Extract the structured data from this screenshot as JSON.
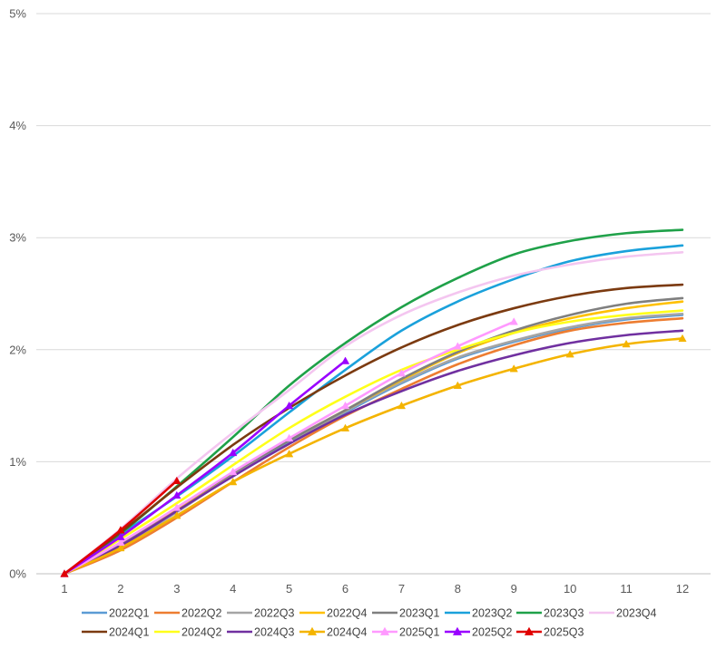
{
  "chart_data": {
    "type": "line",
    "title": "",
    "xlabel": "",
    "ylabel": "",
    "categories": [
      1,
      2,
      3,
      4,
      5,
      6,
      7,
      8,
      9,
      10,
      11,
      12
    ],
    "x_tick_labels": [
      "1",
      "2",
      "3",
      "4",
      "5",
      "6",
      "7",
      "8",
      "9",
      "10",
      "11",
      "12"
    ],
    "ylim": [
      0,
      5
    ],
    "y_ticks": [
      0,
      1,
      2,
      3,
      4,
      5
    ],
    "y_tick_labels": [
      "0%",
      "1%",
      "2%",
      "3%",
      "4%",
      "5%"
    ],
    "grid": "horizontal",
    "legend_position": "bottom",
    "series": [
      {
        "name": "2022Q1",
        "color": "#5B9BD5",
        "marker": "none",
        "values": [
          0,
          0.24,
          0.56,
          0.88,
          1.17,
          1.44,
          1.7,
          1.92,
          2.07,
          2.19,
          2.27,
          2.31
        ]
      },
      {
        "name": "2022Q2",
        "color": "#ED7D31",
        "marker": "none",
        "values": [
          0,
          0.21,
          0.5,
          0.82,
          1.13,
          1.41,
          1.65,
          1.87,
          2.04,
          2.17,
          2.24,
          2.28
        ]
      },
      {
        "name": "2022Q3",
        "color": "#A5A5A5",
        "marker": "none",
        "values": [
          0,
          0.24,
          0.55,
          0.88,
          1.16,
          1.45,
          1.71,
          1.93,
          2.08,
          2.2,
          2.28,
          2.32
        ]
      },
      {
        "name": "2022Q4",
        "color": "#FFC000",
        "marker": "none",
        "values": [
          0,
          0.26,
          0.58,
          0.9,
          1.19,
          1.46,
          1.73,
          1.97,
          2.15,
          2.28,
          2.37,
          2.43
        ]
      },
      {
        "name": "2023Q1",
        "color": "#7F7F7F",
        "marker": "none",
        "values": [
          0,
          0.27,
          0.59,
          0.9,
          1.19,
          1.46,
          1.74,
          1.98,
          2.17,
          2.31,
          2.41,
          2.46
        ]
      },
      {
        "name": "2023Q2",
        "color": "#1AA1DB",
        "marker": "none",
        "values": [
          0,
          0.35,
          0.69,
          1.05,
          1.44,
          1.82,
          2.17,
          2.43,
          2.63,
          2.79,
          2.88,
          2.93
        ]
      },
      {
        "name": "2023Q3",
        "color": "#1FA149",
        "marker": "none",
        "values": [
          0,
          0.36,
          0.78,
          1.22,
          1.68,
          2.06,
          2.38,
          2.64,
          2.85,
          2.97,
          3.04,
          3.07
        ]
      },
      {
        "name": "2023Q4",
        "color": "#F4C6F0",
        "marker": "none",
        "values": [
          0,
          0.4,
          0.85,
          1.26,
          1.64,
          2.03,
          2.31,
          2.51,
          2.66,
          2.76,
          2.83,
          2.87
        ]
      },
      {
        "name": "2024Q1",
        "color": "#7B3A10",
        "marker": "none",
        "values": [
          0,
          0.37,
          0.77,
          1.15,
          1.48,
          1.77,
          2.02,
          2.22,
          2.37,
          2.48,
          2.55,
          2.58
        ]
      },
      {
        "name": "2024Q2",
        "color": "#FFFF1A",
        "marker": "none",
        "values": [
          0,
          0.31,
          0.63,
          0.97,
          1.3,
          1.58,
          1.82,
          2.0,
          2.15,
          2.25,
          2.31,
          2.35
        ]
      },
      {
        "name": "2024Q3",
        "color": "#7030A0",
        "marker": "none",
        "values": [
          0,
          0.25,
          0.56,
          0.87,
          1.16,
          1.42,
          1.63,
          1.81,
          1.95,
          2.06,
          2.13,
          2.17
        ]
      },
      {
        "name": "2024Q4",
        "color": "#F4B400",
        "marker": "triangle",
        "values": [
          0,
          0.23,
          0.52,
          0.82,
          1.07,
          1.3,
          1.5,
          1.68,
          1.83,
          1.96,
          2.05,
          2.1
        ]
      },
      {
        "name": "2025Q1",
        "color": "#FF99FF",
        "marker": "triangle",
        "values": [
          0,
          0.28,
          0.59,
          0.91,
          1.21,
          1.5,
          1.79,
          2.03,
          2.25,
          null,
          null,
          null
        ]
      },
      {
        "name": "2025Q2",
        "color": "#9900FF",
        "marker": "triangle",
        "values": [
          0,
          0.33,
          0.7,
          1.08,
          1.5,
          1.9,
          null,
          null,
          null,
          null,
          null,
          null
        ]
      },
      {
        "name": "2025Q3",
        "color": "#E00000",
        "marker": "triangle",
        "values": [
          0,
          0.39,
          0.83,
          null,
          null,
          null,
          null,
          null,
          null,
          null,
          null,
          null
        ]
      }
    ]
  }
}
